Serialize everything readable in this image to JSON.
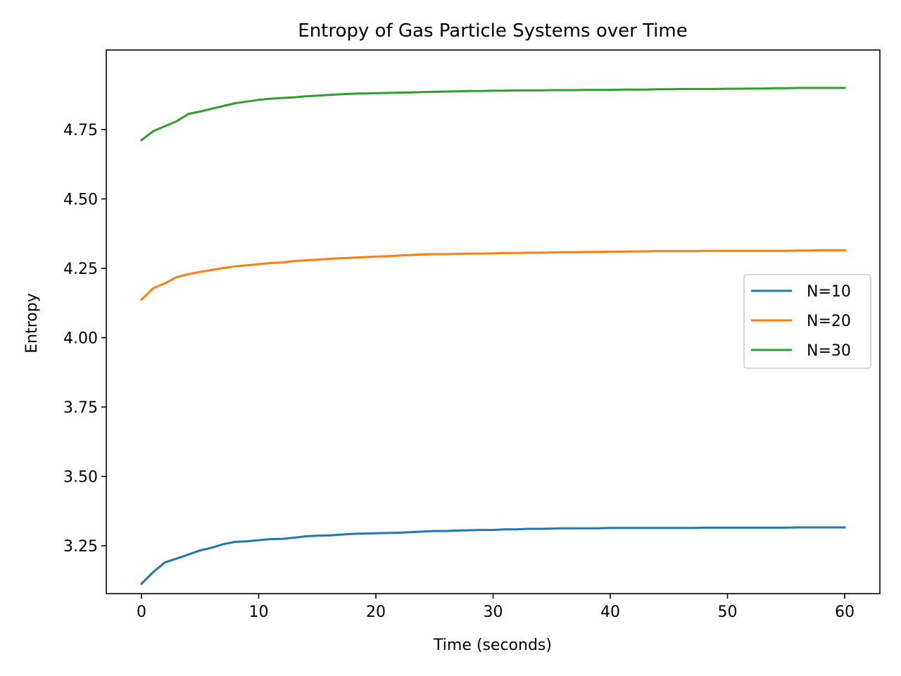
{
  "chart_data": {
    "type": "line",
    "title": "Entropy of Gas Particle Systems over Time",
    "xlabel": "Time (seconds)",
    "ylabel": "Entropy",
    "xlim": [
      -3,
      63
    ],
    "ylim": [
      3.0775,
      5.0367
    ],
    "xticks": [
      0,
      10,
      20,
      30,
      40,
      50,
      60
    ],
    "yticks": [
      3.25,
      3.5,
      3.75,
      4.0,
      4.25,
      4.5,
      4.75
    ],
    "ytick_labels": [
      "3.25",
      "3.50",
      "3.75",
      "4.00",
      "4.25",
      "4.50",
      "4.75"
    ],
    "xtick_labels": [
      "0",
      "10",
      "20",
      "30",
      "40",
      "50",
      "60"
    ],
    "grid": false,
    "legend_position": "center-right",
    "x": [
      0,
      1,
      2,
      3,
      4,
      5,
      6,
      7,
      8,
      9,
      10,
      11,
      12,
      13,
      14,
      15,
      16,
      17,
      18,
      19,
      20,
      21,
      22,
      23,
      24,
      25,
      26,
      27,
      28,
      29,
      30,
      31,
      32,
      33,
      34,
      35,
      36,
      37,
      38,
      39,
      40,
      41,
      42,
      43,
      44,
      45,
      46,
      47,
      48,
      49,
      50,
      51,
      52,
      53,
      54,
      55,
      56,
      57,
      58,
      59,
      60
    ],
    "series": [
      {
        "name": "N=10",
        "color": "#1f77b4",
        "values": [
          3.113,
          3.155,
          3.19,
          3.204,
          3.218,
          3.233,
          3.243,
          3.256,
          3.264,
          3.266,
          3.27,
          3.274,
          3.275,
          3.279,
          3.284,
          3.286,
          3.287,
          3.29,
          3.293,
          3.294,
          3.295,
          3.296,
          3.297,
          3.299,
          3.301,
          3.303,
          3.303,
          3.305,
          3.306,
          3.307,
          3.307,
          3.309,
          3.309,
          3.311,
          3.311,
          3.312,
          3.313,
          3.313,
          3.313,
          3.313,
          3.314,
          3.314,
          3.314,
          3.314,
          3.314,
          3.314,
          3.314,
          3.314,
          3.315,
          3.315,
          3.315,
          3.315,
          3.315,
          3.315,
          3.315,
          3.315,
          3.316,
          3.316,
          3.316,
          3.316,
          3.316
        ]
      },
      {
        "name": "N=20",
        "color": "#ff7f0e",
        "values": [
          4.137,
          4.178,
          4.196,
          4.218,
          4.229,
          4.237,
          4.244,
          4.251,
          4.257,
          4.261,
          4.265,
          4.269,
          4.271,
          4.276,
          4.279,
          4.281,
          4.284,
          4.286,
          4.288,
          4.29,
          4.292,
          4.294,
          4.296,
          4.298,
          4.3,
          4.301,
          4.301,
          4.302,
          4.303,
          4.303,
          4.304,
          4.305,
          4.305,
          4.306,
          4.306,
          4.307,
          4.308,
          4.308,
          4.309,
          4.309,
          4.31,
          4.31,
          4.311,
          4.311,
          4.312,
          4.312,
          4.312,
          4.312,
          4.313,
          4.313,
          4.313,
          4.313,
          4.313,
          4.313,
          4.313,
          4.313,
          4.314,
          4.314,
          4.315,
          4.315,
          4.315
        ]
      },
      {
        "name": "N=30",
        "color": "#2ca02c",
        "values": [
          4.712,
          4.744,
          4.762,
          4.78,
          4.806,
          4.815,
          4.825,
          4.835,
          4.845,
          4.851,
          4.857,
          4.861,
          4.864,
          4.866,
          4.87,
          4.872,
          4.875,
          4.877,
          4.879,
          4.88,
          4.881,
          4.882,
          4.883,
          4.884,
          4.885,
          4.886,
          4.887,
          4.888,
          4.889,
          4.889,
          4.89,
          4.89,
          4.891,
          4.891,
          4.891,
          4.892,
          4.892,
          4.892,
          4.893,
          4.893,
          4.893,
          4.894,
          4.894,
          4.894,
          4.895,
          4.895,
          4.896,
          4.896,
          4.896,
          4.896,
          4.897,
          4.897,
          4.898,
          4.898,
          4.899,
          4.899,
          4.9,
          4.9,
          4.9,
          4.9,
          4.9
        ]
      }
    ]
  }
}
